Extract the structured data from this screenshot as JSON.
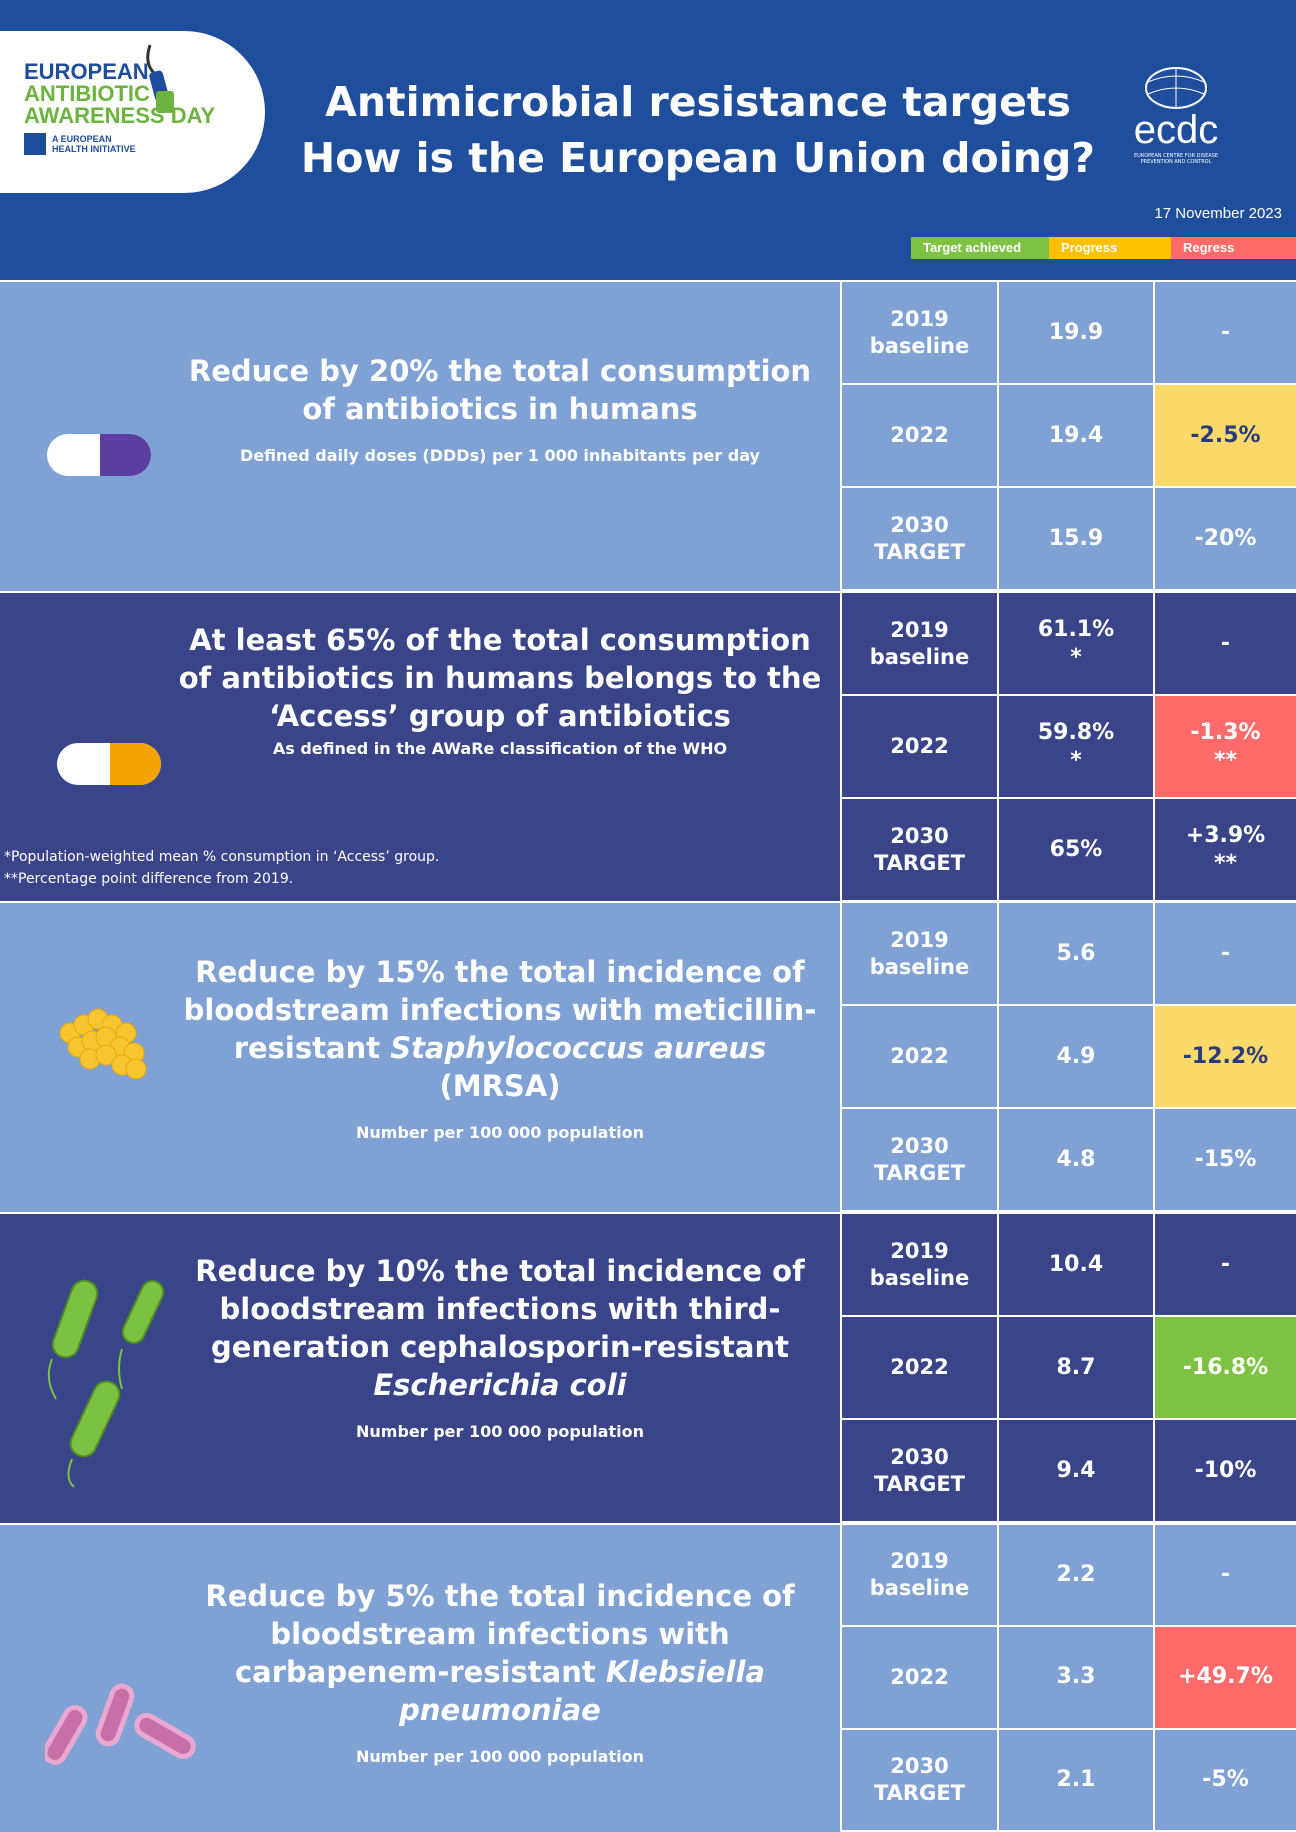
{
  "header": {
    "logo_left": {
      "line1": "EUROPEAN",
      "line2": "ANTIBIOTIC",
      "line3": "AWARENESS DAY",
      "line4": "A EUROPEAN",
      "line5": "HEALTH INITIATIVE"
    },
    "title_line1": "Antimicrobial resistance targets",
    "title_line2": "How is the European Union doing?",
    "logo_right": {
      "wordmark": "ecdc",
      "subtitle": "EUROPEAN CENTRE FOR DISEASE PREVENTION AND CONTROL"
    },
    "date": "17 November 2023",
    "legend": [
      {
        "label": "Target achieved",
        "color": "#7dc242"
      },
      {
        "label": "Progress",
        "color": "#ffc000"
      },
      {
        "label": "Regress",
        "color": "#ff6b6b"
      }
    ]
  },
  "colors": {
    "header": "#1f4e9c",
    "light": "#7fa1d4",
    "dark": "#3a4488",
    "achieved": "#7dc242",
    "progress": "#fcd96b",
    "regress": "#ff6b6b"
  },
  "targets": [
    {
      "icon": "purple-capsule-icon",
      "title": "Reduce by 20% the total consumption of antibiotics in humans",
      "subtitle": "Defined daily doses (DDDs) per 1 000 inhabitants per day",
      "rows": [
        {
          "year": "2019",
          "label": "baseline",
          "value": "19.9",
          "change": "-"
        },
        {
          "year": "2022",
          "label": "",
          "value": "19.4",
          "change": "-2.5%",
          "status": "progress"
        },
        {
          "year": "2030",
          "label": "TARGET",
          "value": "15.9",
          "change": "-20%"
        }
      ]
    },
    {
      "icon": "orange-capsule-icon",
      "title": "At least 65% of the total consumption of antibiotics in humans belongs to the ‘Access’ group of antibiotics",
      "subtitle": "As defined in the AWaRe classification of the WHO",
      "notes": [
        "*Population-weighted mean % consumption in ‘Access’ group.",
        "**Percentage point difference from 2019."
      ],
      "rows": [
        {
          "year": "2019",
          "label": "baseline",
          "value": "61.1%",
          "value_mark": "*",
          "change": "-"
        },
        {
          "year": "2022",
          "label": "",
          "value": "59.8%",
          "value_mark": "*",
          "change": "-1.3%",
          "change_mark": "**",
          "status": "regress"
        },
        {
          "year": "2030",
          "label": "TARGET",
          "value": "65%",
          "change": "+3.9%",
          "change_mark": "**"
        }
      ]
    },
    {
      "icon": "staphylococcus-icon",
      "title_pre": "Reduce by 15% the total incidence of bloodstream infections with meticillin-resistant ",
      "title_it": "Staphylococcus aureus",
      "title_post": " (MRSA)",
      "subtitle": "Number per 100 000 population",
      "rows": [
        {
          "year": "2019",
          "label": "baseline",
          "value": "5.6",
          "change": "-"
        },
        {
          "year": "2022",
          "label": "",
          "value": "4.9",
          "change": "-12.2%",
          "status": "progress"
        },
        {
          "year": "2030",
          "label": "TARGET",
          "value": "4.8",
          "change": "-15%"
        }
      ]
    },
    {
      "icon": "e-coli-icon",
      "title_pre": "Reduce by 10% the total incidence of bloodstream infections with third-generation cephalosporin-resistant ",
      "title_it": "Escherichia coli",
      "title_post": "",
      "subtitle": "Number per 100 000 population",
      "rows": [
        {
          "year": "2019",
          "label": "baseline",
          "value": "10.4",
          "change": "-"
        },
        {
          "year": "2022",
          "label": "",
          "value": "8.7",
          "change": "-16.8%",
          "status": "achieved"
        },
        {
          "year": "2030",
          "label": "TARGET",
          "value": "9.4",
          "change": "-10%"
        }
      ]
    },
    {
      "icon": "klebsiella-icon",
      "title_pre": "Reduce by 5% the total incidence of bloodstream infections with carbapenem-resistant ",
      "title_it": "Klebsiella pneumoniae",
      "title_post": "",
      "subtitle": "Number per 100 000 population",
      "rows": [
        {
          "year": "2019",
          "label": "baseline",
          "value": "2.2",
          "change": "-"
        },
        {
          "year": "2022",
          "label": "",
          "value": "3.3",
          "change": "+49.7%",
          "status": "regress"
        },
        {
          "year": "2030",
          "label": "TARGET",
          "value": "2.1",
          "change": "-5%"
        }
      ]
    }
  ]
}
